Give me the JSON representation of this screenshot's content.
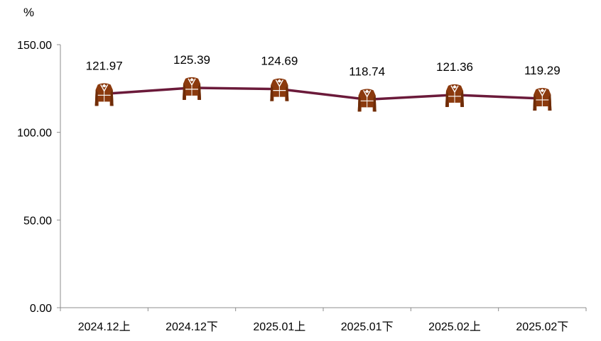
{
  "chart_data": {
    "type": "line",
    "unit": "%",
    "categories": [
      "2024.12上",
      "2024.12下",
      "2025.01上",
      "2025.01下",
      "2025.02上",
      "2025.02下"
    ],
    "series": [
      {
        "values": [
          121.97,
          125.39,
          124.69,
          118.74,
          121.36,
          119.29
        ]
      }
    ],
    "data_labels": [
      "121.97",
      "125.39",
      "124.69",
      "118.74",
      "121.36",
      "119.29"
    ],
    "y_ticks": [
      "0.00",
      "50.00",
      "100.00",
      "150.00"
    ],
    "ylim": [
      0,
      150
    ],
    "grid": false,
    "legend": "none",
    "marker_icon": "coat-icon",
    "colors": {
      "line": "#6b1a3a",
      "marker": "#8b3a0e",
      "marker_detail": "#ffffff",
      "axis": "#8c8c8c"
    }
  }
}
